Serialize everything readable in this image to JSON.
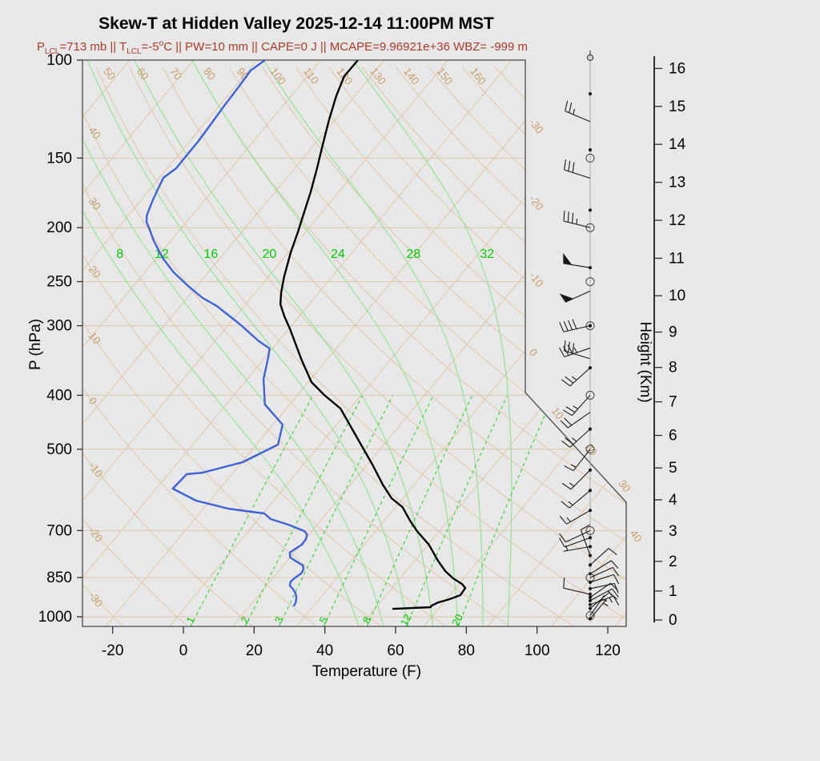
{
  "title": "Skew-T at Hidden Valley 2025-12-14 11:00PM MST",
  "subtitle_segments": [
    {
      "t": "P"
    },
    {
      "sub": "LCL"
    },
    {
      "t": "=713 mb || T"
    },
    {
      "sub": "LCL"
    },
    {
      "t": "=-5"
    },
    {
      "sup": "o"
    },
    {
      "t": "C || PW=10 mm || CAPE=0 J || MCAPE=9.96921e+36 WBZ= -999 m"
    }
  ],
  "parameters": {
    "p_lcl_mb": 713,
    "t_lcl_C": -5,
    "pw_mm": 10,
    "cape_J": 0,
    "mcape_J": "9.96921e+36",
    "wbz_m": -999
  },
  "colors": {
    "background": "#e8e8e8",
    "frame": "#474747",
    "axis": "#2e2e2e",
    "grid_tan": "#dcc6a8",
    "tan_label": "#c79d6d",
    "moist_green": "#90e090",
    "mixing_green": "#28d228",
    "green_label": "#00cc00",
    "temperature": "#000000",
    "dewpoint": "#3f62d9",
    "subtitle": "#ad3a27",
    "barb": "#1a1a1a",
    "staff": "#999999"
  },
  "chart_data": {
    "type": "line",
    "variant": "skewt_log_p_sounding",
    "title": "Skew-T at Hidden Valley 2025-12-14 11:00PM MST",
    "xlabel": "Temperature (F)",
    "ylabel_left": "P (hPa)",
    "ylabel_right": "Height (Km)",
    "x_ticks_F": [
      -20,
      0,
      20,
      40,
      60,
      80,
      100,
      120
    ],
    "pressure_levels_hPa": [
      100,
      150,
      200,
      250,
      300,
      400,
      500,
      700,
      850,
      1000
    ],
    "height_ticks_km": [
      0,
      1,
      2,
      3,
      4,
      5,
      6,
      7,
      8,
      9,
      10,
      11,
      12,
      13,
      14,
      15,
      16
    ],
    "isotherms_C": {
      "min": -110,
      "max": 50,
      "step": 10,
      "labels": [
        -30,
        -20,
        -10,
        0,
        10,
        20,
        30,
        40
      ]
    },
    "dry_adiabats_C": {
      "min": -40,
      "max": 240,
      "step": 10,
      "top_labels": [
        50,
        60,
        70,
        80,
        90,
        100,
        110,
        120,
        130,
        140,
        150,
        160
      ],
      "left_labels": [
        40,
        30,
        20,
        10,
        0,
        -10,
        -20,
        -30
      ]
    },
    "moist_adiabat_labels_C": [
      8,
      12,
      16,
      20,
      24,
      28,
      32
    ],
    "mixing_ratio_g_kg": [
      1,
      2,
      3,
      5,
      8,
      12,
      20
    ],
    "temperature_profile_p_F": [
      [
        100,
        -83.5
      ],
      [
        106.9,
        -83.6
      ],
      [
        116.1,
        -81.2
      ],
      [
        128.2,
        -77.6
      ],
      [
        141.6,
        -73.7
      ],
      [
        156.4,
        -69.7
      ],
      [
        172.7,
        -65.9
      ],
      [
        187.7,
        -63
      ],
      [
        203.9,
        -60.1
      ],
      [
        221.5,
        -57.4
      ],
      [
        244.7,
        -53.6
      ],
      [
        261.5,
        -50.7
      ],
      [
        274.7,
        -48.1
      ],
      [
        288.6,
        -44.2
      ],
      [
        303.5,
        -39.8
      ],
      [
        346.4,
        -28.9
      ],
      [
        378.8,
        -21.1
      ],
      [
        399.4,
        -14.5
      ],
      [
        422.6,
        -6.7
      ],
      [
        474.6,
        4.4
      ],
      [
        532.9,
        15.5
      ],
      [
        578.8,
        23.1
      ],
      [
        612.5,
        28.8
      ],
      [
        635.4,
        34
      ],
      [
        672.1,
        39.3
      ],
      [
        701.6,
        43.7
      ],
      [
        742.4,
        50.3
      ],
      [
        793.3,
        56.6
      ],
      [
        827.9,
        61.1
      ],
      [
        852.9,
        65
      ],
      [
        873,
        68.8
      ],
      [
        887.6,
        70.7
      ],
      [
        914.5,
        71
      ],
      [
        929.9,
        68.8
      ],
      [
        942.3,
        66.4
      ],
      [
        954.9,
        65.3
      ],
      [
        961,
        65.4
      ],
      [
        967.7,
        55
      ]
    ],
    "dewpoint_profile_p_F": [
      [
        100,
        -109.8
      ],
      [
        104.4,
        -111.4
      ],
      [
        112.3,
        -110.9
      ],
      [
        120.8,
        -110.6
      ],
      [
        131.2,
        -110
      ],
      [
        140.2,
        -109.6
      ],
      [
        148.8,
        -109.6
      ],
      [
        156.4,
        -109.5
      ],
      [
        162.7,
        -110.9
      ],
      [
        171.2,
        -109.7
      ],
      [
        180,
        -108.4
      ],
      [
        189.9,
        -106.8
      ],
      [
        195.3,
        -105.3
      ],
      [
        201.9,
        -102.5
      ],
      [
        210.8,
        -99
      ],
      [
        226.7,
        -92.3
      ],
      [
        240.6,
        -85.8
      ],
      [
        254.6,
        -78.5
      ],
      [
        267.5,
        -71.6
      ],
      [
        276.6,
        -65.7
      ],
      [
        298.4,
        -54.8
      ],
      [
        318.9,
        -46
      ],
      [
        329.7,
        -40.8
      ],
      [
        343,
        -39
      ],
      [
        373.9,
        -35.4
      ],
      [
        415.6,
        -29
      ],
      [
        451.5,
        -19.3
      ],
      [
        490.5,
        -15.9
      ],
      [
        527.6,
        -21.8
      ],
      [
        550.8,
        -30.6
      ],
      [
        554.4,
        -34.8
      ],
      [
        588.6,
        -35.3
      ],
      [
        618.6,
        -25.9
      ],
      [
        639.4,
        -14.9
      ],
      [
        652.2,
        -3.6
      ],
      [
        667.5,
        -0.5
      ],
      [
        683.1,
        5.8
      ],
      [
        701.4,
        11.8
      ],
      [
        710.7,
        13.3
      ],
      [
        725,
        14.2
      ],
      [
        742,
        14.3
      ],
      [
        754.4,
        13.5
      ],
      [
        767,
        12.8
      ],
      [
        782.4,
        14
      ],
      [
        795.5,
        16.7
      ],
      [
        808.7,
        19.5
      ],
      [
        822.3,
        20.6
      ],
      [
        836,
        20.9
      ],
      [
        850,
        20.2
      ],
      [
        864.2,
        19.8
      ],
      [
        878.6,
        20.5
      ],
      [
        893.3,
        22.4
      ],
      [
        908.2,
        24
      ],
      [
        923.4,
        25.2
      ],
      [
        942.1,
        26.1
      ],
      [
        957.9,
        26.5
      ]
    ],
    "wind_barbs": [
      {
        "p": 99,
        "marker": "calm",
        "dir": 0,
        "spd": 0
      },
      {
        "p": 115,
        "marker": "dot",
        "dir": 0,
        "spd": 0
      },
      {
        "p": 129,
        "marker": "none",
        "dir": 293,
        "spd": 25
      },
      {
        "p": 145,
        "marker": "dot",
        "dir": 0,
        "spd": 0
      },
      {
        "p": 150,
        "marker": "circle",
        "dir": 0,
        "spd": 0
      },
      {
        "p": 163,
        "marker": "none",
        "dir": 288,
        "spd": 30
      },
      {
        "p": 186,
        "marker": "dot",
        "dir": 0,
        "spd": 0
      },
      {
        "p": 200,
        "marker": "circle",
        "dir": 284,
        "spd": 35
      },
      {
        "p": 236,
        "marker": "dot",
        "dir": 279,
        "spd": 50
      },
      {
        "p": 250,
        "marker": "circle",
        "dir": 0,
        "spd": 0
      },
      {
        "p": 260,
        "marker": "none",
        "dir": 246,
        "spd": 50
      },
      {
        "p": 300,
        "marker": "circledot",
        "dir": 257,
        "spd": 40
      },
      {
        "p": 329,
        "marker": "none",
        "dir": 251,
        "spd": 35
      },
      {
        "p": 344,
        "marker": "none",
        "dir": 287,
        "spd": 30
      },
      {
        "p": 357,
        "marker": "dot",
        "dir": 228,
        "spd": 25
      },
      {
        "p": 400,
        "marker": "circle",
        "dir": 222,
        "spd": 25
      },
      {
        "p": 429,
        "marker": "none",
        "dir": 235,
        "spd": 20
      },
      {
        "p": 460,
        "marker": "dot",
        "dir": 228,
        "spd": 25
      },
      {
        "p": 500,
        "marker": "circle",
        "dir": 218,
        "spd": 15
      },
      {
        "p": 545,
        "marker": "dot",
        "dir": 225,
        "spd": 15
      },
      {
        "p": 593,
        "marker": "dot",
        "dir": 230,
        "spd": 15
      },
      {
        "p": 644,
        "marker": "dot",
        "dir": 240,
        "spd": 15
      },
      {
        "p": 700,
        "marker": "circle",
        "dir": 245,
        "spd": 10
      },
      {
        "p": 721,
        "marker": "dot",
        "dir": 250,
        "spd": 10
      },
      {
        "p": 748,
        "marker": "dot",
        "dir": 260,
        "spd": 8
      },
      {
        "p": 776,
        "marker": "dot",
        "dir": 340,
        "spd": 10
      },
      {
        "p": 807,
        "marker": "dot",
        "dir": 48,
        "spd": 10
      },
      {
        "p": 837,
        "marker": "dot",
        "dir": 58,
        "spd": 10
      },
      {
        "p": 850,
        "marker": "circle",
        "dir": 66,
        "spd": 10
      },
      {
        "p": 867,
        "marker": "dot",
        "dir": 72,
        "spd": 10
      },
      {
        "p": 890,
        "marker": "dot",
        "dir": 78,
        "spd": 10
      },
      {
        "p": 911,
        "marker": "dot",
        "dir": 283,
        "spd": 10
      },
      {
        "p": 923,
        "marker": "dot",
        "dir": 55,
        "spd": 12
      },
      {
        "p": 935,
        "marker": "dot",
        "dir": 62,
        "spd": 15
      },
      {
        "p": 951,
        "marker": "dot",
        "dir": 70,
        "spd": 15
      },
      {
        "p": 966,
        "marker": "dot",
        "dir": 50,
        "spd": 10
      },
      {
        "p": 995,
        "marker": "circle",
        "dir": 35,
        "spd": 5
      },
      {
        "p": 1008,
        "marker": "dot",
        "dir": 40,
        "spd": 5
      }
    ]
  }
}
